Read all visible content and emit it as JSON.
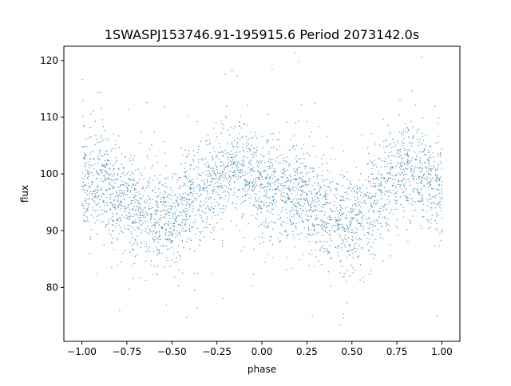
{
  "chart_data": {
    "type": "scatter",
    "title": "1SWASPJ153746.91-195915.6 Period 2073142.0s",
    "xlabel": "phase",
    "ylabel": "flux",
    "xlim": [
      -1.1,
      1.1
    ],
    "ylim": [
      70.5,
      122.5
    ],
    "xticks": [
      -1.0,
      -0.75,
      -0.5,
      -0.25,
      0.0,
      0.25,
      0.5,
      0.75,
      1.0
    ],
    "xtick_labels": [
      "−1.00",
      "−0.75",
      "−0.50",
      "−0.25",
      "0.00",
      "0.25",
      "0.50",
      "0.75",
      "1.00"
    ],
    "yticks": [
      80,
      90,
      100,
      110,
      120
    ],
    "ytick_labels": [
      "80",
      "90",
      "100",
      "110",
      "120"
    ],
    "grid": false,
    "marker_color": "#1f77b4",
    "series": [
      {
        "phase_range": [
          -1.0,
          1.0
        ],
        "trend": {
          "x": [
            -1.0,
            -0.9,
            -0.8,
            -0.7,
            -0.6,
            -0.5,
            -0.4,
            -0.3,
            -0.2,
            -0.1,
            0.0,
            0.1,
            0.2,
            0.3,
            0.4,
            0.5,
            0.6,
            0.7,
            0.8,
            0.9,
            1.0
          ],
          "y": [
            98,
            99,
            96,
            95,
            93,
            92,
            95,
            98,
            101,
            100,
            98,
            97,
            96,
            94,
            92,
            91,
            95,
            99,
            101,
            100,
            98
          ]
        },
        "scatter_sd": 4.5
      }
    ]
  }
}
